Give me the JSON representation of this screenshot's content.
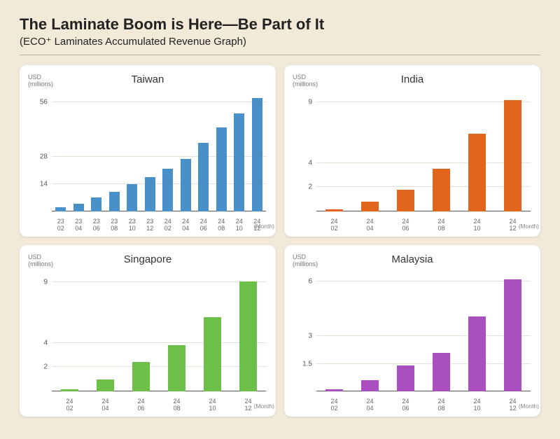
{
  "page": {
    "title": "The Laminate Boom is Here—Be Part of It",
    "subtitle": "(ECO⁺ Laminates Accumulated Revenue Graph)",
    "background_color": "#f2ead9",
    "panel_bg": "#ffffff",
    "rule_color": "#b8b2a6"
  },
  "common": {
    "y_axis_label_line1": "USD",
    "y_axis_label_line2": "(millions)",
    "x_axis_label": "(Month)"
  },
  "charts": [
    {
      "id": "taiwan",
      "title": "Taiwan",
      "bar_color": "#4a90c8",
      "ymax": 62,
      "yticks": [
        14,
        28,
        56
      ],
      "categories": [
        {
          "yr": "23",
          "mo": "02"
        },
        {
          "yr": "23",
          "mo": "04"
        },
        {
          "yr": "23",
          "mo": "06"
        },
        {
          "yr": "23",
          "mo": "08"
        },
        {
          "yr": "23",
          "mo": "10"
        },
        {
          "yr": "23",
          "mo": "12"
        },
        {
          "yr": "24",
          "mo": "02"
        },
        {
          "yr": "24",
          "mo": "04"
        },
        {
          "yr": "24",
          "mo": "06"
        },
        {
          "yr": "24",
          "mo": "08"
        },
        {
          "yr": "24",
          "mo": "10"
        },
        {
          "yr": "24",
          "mo": "12"
        }
      ],
      "values": [
        2,
        4,
        7,
        10,
        14,
        17.5,
        22,
        27,
        35,
        43,
        50,
        58
      ],
      "bar_width_pct": 60
    },
    {
      "id": "india",
      "title": "India",
      "bar_color": "#e2651e",
      "ymax": 10,
      "yticks": [
        2,
        4,
        9
      ],
      "categories": [
        {
          "yr": "24",
          "mo": "02"
        },
        {
          "yr": "24",
          "mo": "04"
        },
        {
          "yr": "24",
          "mo": "06"
        },
        {
          "yr": "24",
          "mo": "08"
        },
        {
          "yr": "24",
          "mo": "10"
        },
        {
          "yr": "24",
          "mo": "12"
        }
      ],
      "values": [
        0.15,
        0.8,
        1.8,
        3.5,
        6.4,
        9.2
      ],
      "bar_width_pct": 48
    },
    {
      "id": "singapore",
      "title": "Singapore",
      "bar_color": "#6cc04a",
      "ymax": 10,
      "yticks": [
        2,
        4,
        9
      ],
      "categories": [
        {
          "yr": "24",
          "mo": "02"
        },
        {
          "yr": "24",
          "mo": "04"
        },
        {
          "yr": "24",
          "mo": "06"
        },
        {
          "yr": "24",
          "mo": "08"
        },
        {
          "yr": "24",
          "mo": "10"
        },
        {
          "yr": "24",
          "mo": "12"
        }
      ],
      "values": [
        0.2,
        1.0,
        2.4,
        3.8,
        6.1,
        9.1
      ],
      "bar_width_pct": 48
    },
    {
      "id": "malaysia",
      "title": "Malaysia",
      "bar_color": "#a94fbf",
      "ymax": 6.6,
      "yticks": [
        1.5,
        3,
        6
      ],
      "categories": [
        {
          "yr": "24",
          "mo": "02"
        },
        {
          "yr": "24",
          "mo": "04"
        },
        {
          "yr": "24",
          "mo": "06"
        },
        {
          "yr": "24",
          "mo": "08"
        },
        {
          "yr": "24",
          "mo": "10"
        },
        {
          "yr": "24",
          "mo": "12"
        }
      ],
      "values": [
        0.1,
        0.6,
        1.4,
        2.1,
        4.1,
        6.1
      ],
      "bar_width_pct": 48
    }
  ]
}
